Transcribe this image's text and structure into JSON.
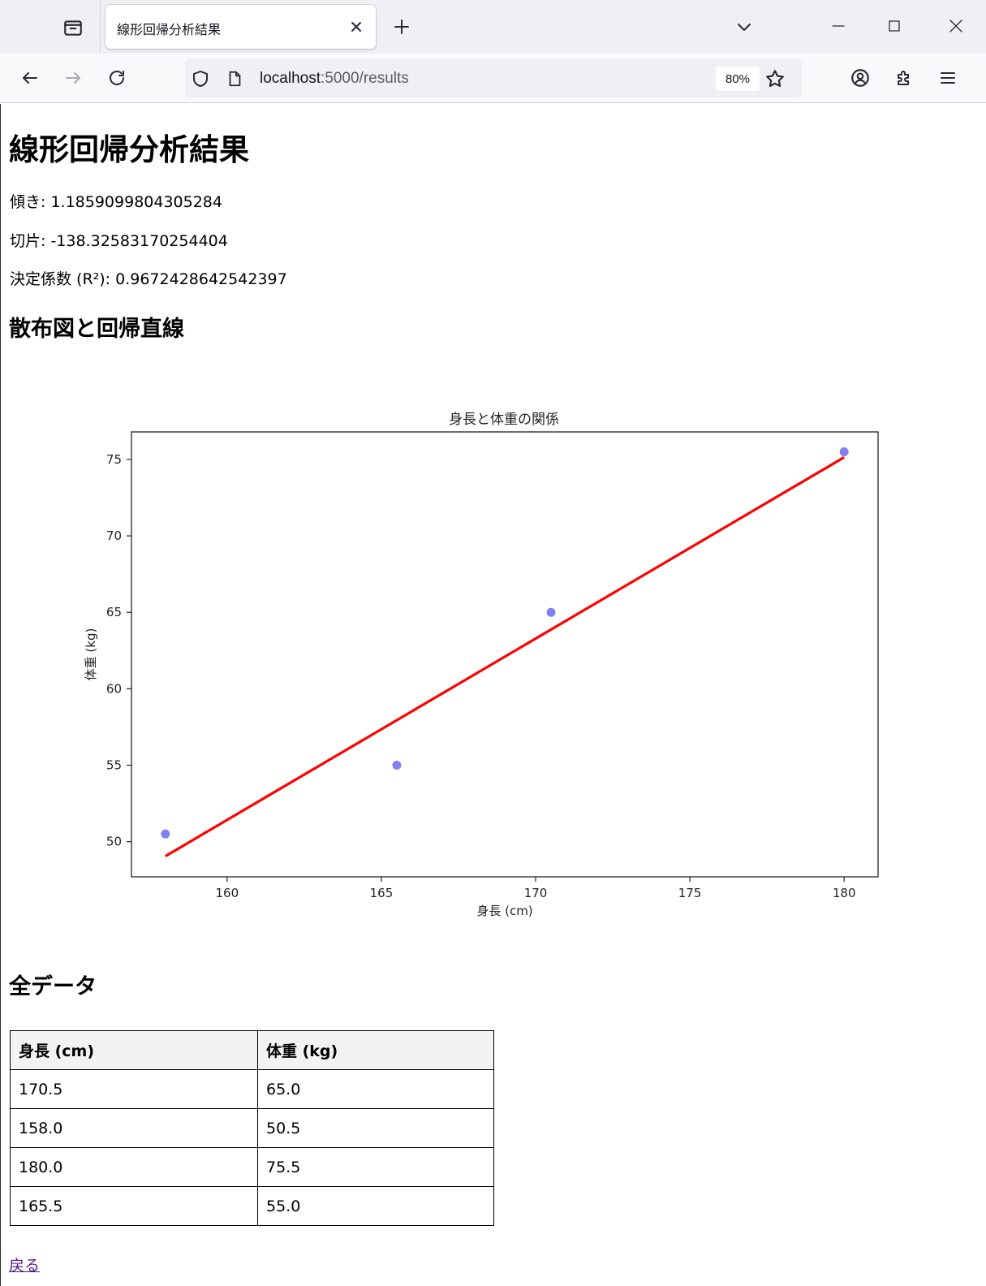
{
  "browser": {
    "tab_title": "線形回帰分析結果",
    "url_host": "localhost",
    "url_rest": ":5000/results",
    "zoom": "80%"
  },
  "page": {
    "title": "線形回帰分析結果",
    "slope_label": "傾き: 1.1859099804305284",
    "intercept_label": "切片: -138.32583170254404",
    "r2_label": "決定係数 (R²): 0.9672428642542397",
    "plot_heading": "散布図と回帰直線",
    "table_heading": "全データ",
    "back_link": "戻る"
  },
  "table": {
    "headers": [
      "身長 (cm)",
      "体重 (kg)"
    ],
    "rows": [
      [
        "170.5",
        "65.0"
      ],
      [
        "158.0",
        "50.5"
      ],
      [
        "180.0",
        "75.5"
      ],
      [
        "165.5",
        "55.0"
      ]
    ]
  },
  "chart_data": {
    "type": "scatter",
    "title": "身長と体重の関係",
    "xlabel": "身長 (cm)",
    "ylabel": "体重 (kg)",
    "xlim": [
      156.9,
      181.1
    ],
    "ylim": [
      47.7,
      76.8
    ],
    "xticks": [
      160,
      165,
      170,
      175,
      180
    ],
    "yticks": [
      50,
      55,
      60,
      65,
      70,
      75
    ],
    "grid": false,
    "series": [
      {
        "type": "scatter",
        "color": "#6b6bf0",
        "x": [
          170.5,
          158.0,
          180.0,
          165.5
        ],
        "y": [
          65.0,
          50.5,
          75.5,
          55.0
        ]
      },
      {
        "type": "line",
        "color": "#ff0000",
        "x": [
          158.0,
          180.0
        ],
        "y": [
          49.05,
          75.14
        ]
      }
    ]
  }
}
